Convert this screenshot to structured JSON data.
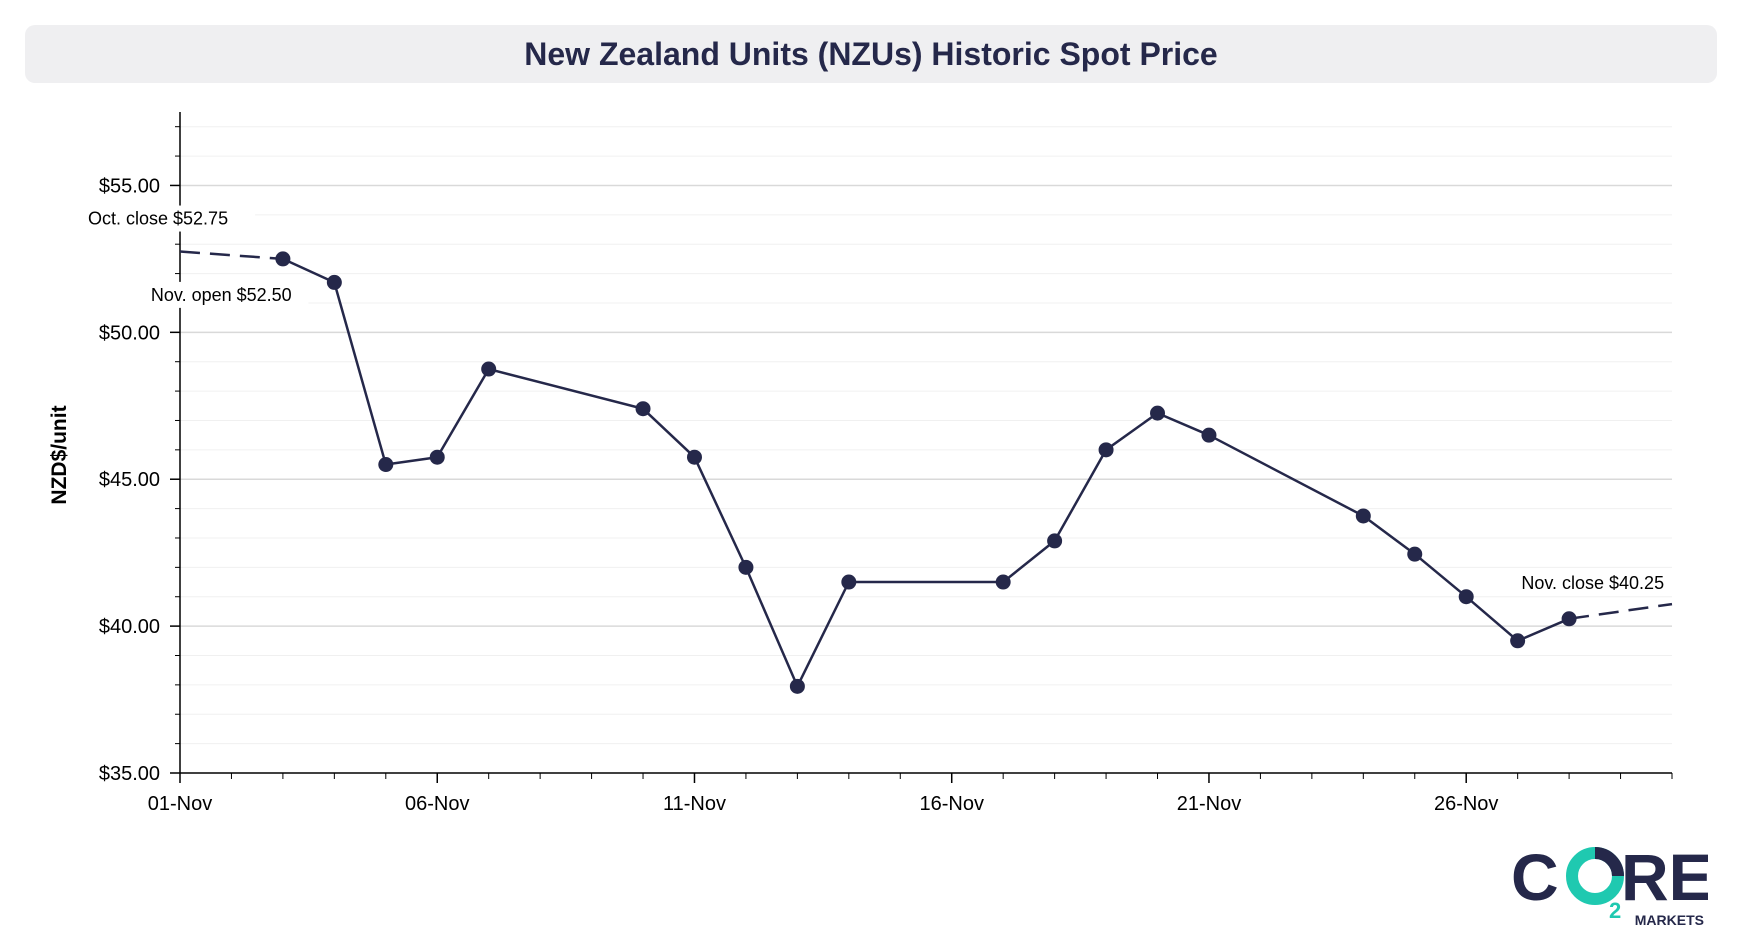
{
  "chart_data": {
    "type": "line",
    "title": "New Zealand Units (NZUs) Historic Spot Price",
    "ylabel": "NZD$/unit",
    "xlabel": "",
    "x_range": [
      "01-Nov",
      "30-Nov"
    ],
    "ylim": [
      35,
      57.5
    ],
    "y_ticks": [
      {
        "value": 35,
        "label": "$35.00"
      },
      {
        "value": 40,
        "label": "$40.00"
      },
      {
        "value": 45,
        "label": "$45.00"
      },
      {
        "value": 50,
        "label": "$50.00"
      },
      {
        "value": 55,
        "label": "$55.00"
      }
    ],
    "x_ticks": [
      {
        "day": 1,
        "label": "01-Nov"
      },
      {
        "day": 6,
        "label": "06-Nov"
      },
      {
        "day": 11,
        "label": "11-Nov"
      },
      {
        "day": 16,
        "label": "16-Nov"
      },
      {
        "day": 21,
        "label": "21-Nov"
      },
      {
        "day": 26,
        "label": "26-Nov"
      }
    ],
    "grid": true,
    "series": [
      {
        "points": [
          {
            "x": "03-Nov",
            "y": 52.5
          },
          {
            "x": "04-Nov",
            "y": 51.7
          },
          {
            "x": "05-Nov",
            "y": 45.5
          },
          {
            "x": "06-Nov",
            "y": 45.75
          },
          {
            "x": "07-Nov",
            "y": 48.75
          },
          {
            "x": "10-Nov",
            "y": 47.4
          },
          {
            "x": "11-Nov",
            "y": 45.75
          },
          {
            "x": "12-Nov",
            "y": 42.0
          },
          {
            "x": "13-Nov",
            "y": 37.95
          },
          {
            "x": "14-Nov",
            "y": 41.5
          },
          {
            "x": "17-Nov",
            "y": 41.5
          },
          {
            "x": "18-Nov",
            "y": 42.9
          },
          {
            "x": "19-Nov",
            "y": 46.0
          },
          {
            "x": "20-Nov",
            "y": 47.25
          },
          {
            "x": "21-Nov",
            "y": 46.5
          },
          {
            "x": "24-Nov",
            "y": 43.75
          },
          {
            "x": "25-Nov",
            "y": 42.45
          },
          {
            "x": "26-Nov",
            "y": 41.0
          },
          {
            "x": "27-Nov",
            "y": 39.5
          },
          {
            "x": "28-Nov",
            "y": 40.25
          }
        ]
      }
    ],
    "dashed_segments": [
      {
        "from": {
          "x": "01-Nov",
          "y": 52.75
        },
        "to": {
          "x": "03-Nov",
          "y": 52.5
        }
      },
      {
        "from": {
          "x": "28-Nov",
          "y": 40.25
        },
        "to": {
          "x": "30-Nov",
          "y": 40.75
        }
      }
    ],
    "annotations": [
      {
        "text": "Oct. close $52.75",
        "x": "01-Nov",
        "y": 52.75
      },
      {
        "text": "Nov. open $52.50",
        "x": "03-Nov",
        "y": 52.5
      },
      {
        "text": "Nov. close $40.25",
        "x": "28-Nov",
        "y": 40.25
      }
    ],
    "colors": {
      "line": "#25284a",
      "grid": "#d9d9d9",
      "minor_grid": "#f0f0f0",
      "axis": "#000000"
    }
  },
  "logo": {
    "text_c": "C",
    "text_re": "RE",
    "subscript": "2",
    "tagline": "MARKETS",
    "colors": {
      "dark": "#25284a",
      "teal": "#1fc9b0"
    }
  }
}
